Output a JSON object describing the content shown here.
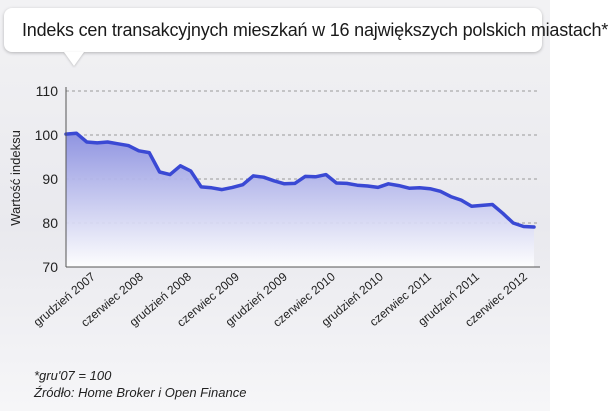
{
  "title": "Indeks cen transakcyjnych mieszkań w 16 największych polskich miastach*",
  "footnotes": {
    "base": "*gru'07 = 100",
    "source": "Źródło: Home Broker i Open Finance"
  },
  "colors": {
    "line": "#3a49d4",
    "area_top": "#8a8fe0",
    "grid": "#9a9a9a"
  },
  "chart_data": {
    "type": "area",
    "title": "Indeks cen transakcyjnych mieszkań w 16 największych polskich miastach*",
    "ylabel": "Wartość indeksu",
    "xlabel": "",
    "ylim": [
      70,
      110
    ],
    "yticks": [
      70,
      80,
      90,
      100,
      110
    ],
    "grid": true,
    "x_tick_labels": [
      "grudzień 2007",
      "czerwiec 2008",
      "grudzień 2008",
      "czerwiec 2009",
      "grudzień 2009",
      "czerwiec 2010",
      "grudzień 2010",
      "czerwiec 2011",
      "grudzień 2011",
      "czerwiec 2012"
    ],
    "series": [
      {
        "values": [
          100.2,
          100.4,
          98.4,
          98.2,
          98.4,
          98.0,
          97.6,
          96.4,
          96.0,
          91.6,
          91.0,
          93.0,
          91.8,
          88.2,
          88.0,
          87.6,
          88.1,
          88.7,
          90.7,
          90.4,
          89.6,
          88.9,
          89.0,
          90.6,
          90.5,
          91.0,
          89.1,
          89.0,
          88.6,
          88.4,
          88.1,
          88.9,
          88.5,
          87.9,
          88.0,
          87.8,
          87.2,
          86.0,
          85.2,
          83.8,
          84.0,
          84.2,
          82.2,
          80.0,
          79.2,
          79.1
        ]
      }
    ]
  }
}
